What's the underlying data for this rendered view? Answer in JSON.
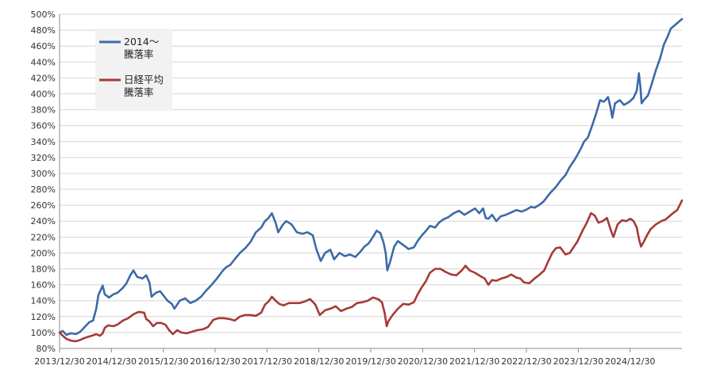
{
  "chart_data": {
    "type": "line",
    "title": "",
    "xlabel": "",
    "ylabel": "",
    "y_unit": "%",
    "ylim": [
      80,
      500
    ],
    "y_tick_step": 20,
    "grid": "horizontal",
    "legend_position": "top-left",
    "x_tick_labels": [
      "2013/12/30",
      "2014/12/30",
      "2015/12/30",
      "2016/12/30",
      "2017/12/30",
      "2018/12/30",
      "2019/12/30",
      "2020/12/30",
      "2021/12/30",
      "2022/12/30",
      "2023/12/30",
      "2024/12/30"
    ],
    "x_range": [
      2013.99,
      2025.69
    ],
    "series": [
      {
        "legend_lines": [
          "2014～",
          "騰落率"
        ],
        "color": "#3c6aa8",
        "points": [
          [
            2013.99,
            100
          ],
          [
            2014.05,
            102
          ],
          [
            2014.12,
            97
          ],
          [
            2014.2,
            99
          ],
          [
            2014.3,
            98
          ],
          [
            2014.38,
            101
          ],
          [
            2014.45,
            106
          ],
          [
            2014.55,
            113
          ],
          [
            2014.62,
            115
          ],
          [
            2014.68,
            130
          ],
          [
            2014.72,
            147
          ],
          [
            2014.8,
            159
          ],
          [
            2014.84,
            148
          ],
          [
            2014.92,
            144
          ],
          [
            2015.0,
            148
          ],
          [
            2015.08,
            150
          ],
          [
            2015.18,
            156
          ],
          [
            2015.25,
            162
          ],
          [
            2015.32,
            172
          ],
          [
            2015.38,
            178
          ],
          [
            2015.45,
            170
          ],
          [
            2015.55,
            168
          ],
          [
            2015.62,
            172
          ],
          [
            2015.68,
            163
          ],
          [
            2015.72,
            145
          ],
          [
            2015.8,
            150
          ],
          [
            2015.88,
            152
          ],
          [
            2015.95,
            146
          ],
          [
            2016.02,
            140
          ],
          [
            2016.1,
            136
          ],
          [
            2016.15,
            130
          ],
          [
            2016.25,
            140
          ],
          [
            2016.35,
            143
          ],
          [
            2016.45,
            137
          ],
          [
            2016.55,
            140
          ],
          [
            2016.65,
            145
          ],
          [
            2016.75,
            153
          ],
          [
            2016.85,
            160
          ],
          [
            2016.95,
            168
          ],
          [
            2017.05,
            177
          ],
          [
            2017.12,
            182
          ],
          [
            2017.2,
            185
          ],
          [
            2017.28,
            192
          ],
          [
            2017.38,
            200
          ],
          [
            2017.48,
            206
          ],
          [
            2017.58,
            214
          ],
          [
            2017.68,
            226
          ],
          [
            2017.78,
            232
          ],
          [
            2017.85,
            240
          ],
          [
            2017.92,
            244
          ],
          [
            2017.98,
            250
          ],
          [
            2018.05,
            238
          ],
          [
            2018.1,
            226
          ],
          [
            2018.18,
            235
          ],
          [
            2018.25,
            240
          ],
          [
            2018.35,
            236
          ],
          [
            2018.45,
            226
          ],
          [
            2018.55,
            224
          ],
          [
            2018.65,
            226
          ],
          [
            2018.75,
            222
          ],
          [
            2018.82,
            204
          ],
          [
            2018.9,
            190
          ],
          [
            2018.98,
            200
          ],
          [
            2019.08,
            204
          ],
          [
            2019.15,
            192
          ],
          [
            2019.25,
            200
          ],
          [
            2019.35,
            196
          ],
          [
            2019.45,
            198
          ],
          [
            2019.55,
            195
          ],
          [
            2019.65,
            202
          ],
          [
            2019.72,
            208
          ],
          [
            2019.8,
            212
          ],
          [
            2019.88,
            220
          ],
          [
            2019.95,
            228
          ],
          [
            2020.02,
            225
          ],
          [
            2020.08,
            213
          ],
          [
            2020.12,
            200
          ],
          [
            2020.15,
            178
          ],
          [
            2020.2,
            188
          ],
          [
            2020.28,
            208
          ],
          [
            2020.35,
            215
          ],
          [
            2020.45,
            210
          ],
          [
            2020.55,
            205
          ],
          [
            2020.65,
            207
          ],
          [
            2020.72,
            215
          ],
          [
            2020.8,
            222
          ],
          [
            2020.88,
            228
          ],
          [
            2020.95,
            234
          ],
          [
            2021.05,
            232
          ],
          [
            2021.12,
            238
          ],
          [
            2021.2,
            242
          ],
          [
            2021.3,
            245
          ],
          [
            2021.4,
            250
          ],
          [
            2021.5,
            253
          ],
          [
            2021.6,
            248
          ],
          [
            2021.7,
            252
          ],
          [
            2021.8,
            256
          ],
          [
            2021.88,
            250
          ],
          [
            2021.95,
            256
          ],
          [
            2022.0,
            244
          ],
          [
            2022.05,
            243
          ],
          [
            2022.12,
            248
          ],
          [
            2022.2,
            240
          ],
          [
            2022.28,
            246
          ],
          [
            2022.38,
            248
          ],
          [
            2022.48,
            251
          ],
          [
            2022.58,
            254
          ],
          [
            2022.68,
            252
          ],
          [
            2022.78,
            255
          ],
          [
            2022.85,
            258
          ],
          [
            2022.92,
            257
          ],
          [
            2023.0,
            260
          ],
          [
            2023.08,
            264
          ],
          [
            2023.15,
            270
          ],
          [
            2023.22,
            276
          ],
          [
            2023.32,
            283
          ],
          [
            2023.42,
            292
          ],
          [
            2023.5,
            298
          ],
          [
            2023.58,
            308
          ],
          [
            2023.68,
            318
          ],
          [
            2023.78,
            330
          ],
          [
            2023.85,
            340
          ],
          [
            2023.92,
            345
          ],
          [
            2024.0,
            360
          ],
          [
            2024.08,
            376
          ],
          [
            2024.15,
            392
          ],
          [
            2024.22,
            390
          ],
          [
            2024.25,
            392
          ],
          [
            2024.3,
            396
          ],
          [
            2024.35,
            382
          ],
          [
            2024.38,
            370
          ],
          [
            2024.43,
            388
          ],
          [
            2024.52,
            392
          ],
          [
            2024.6,
            386
          ],
          [
            2024.7,
            390
          ],
          [
            2024.78,
            395
          ],
          [
            2024.84,
            404
          ],
          [
            2024.88,
            426
          ],
          [
            2024.91,
            408
          ],
          [
            2024.93,
            388
          ],
          [
            2024.97,
            392
          ],
          [
            2025.05,
            398
          ],
          [
            2025.12,
            412
          ],
          [
            2025.2,
            430
          ],
          [
            2025.28,
            445
          ],
          [
            2025.35,
            462
          ],
          [
            2025.42,
            472
          ],
          [
            2025.48,
            482
          ],
          [
            2025.55,
            486
          ],
          [
            2025.62,
            490
          ],
          [
            2025.69,
            494
          ]
        ]
      },
      {
        "legend_lines": [
          "日経平均",
          "騰落率"
        ],
        "color": "#a53a36",
        "points": [
          [
            2013.99,
            100
          ],
          [
            2014.05,
            96
          ],
          [
            2014.12,
            92
          ],
          [
            2014.2,
            90
          ],
          [
            2014.28,
            89
          ],
          [
            2014.35,
            90
          ],
          [
            2014.42,
            92
          ],
          [
            2014.5,
            94
          ],
          [
            2014.6,
            96
          ],
          [
            2014.68,
            98
          ],
          [
            2014.75,
            96
          ],
          [
            2014.8,
            99
          ],
          [
            2014.84,
            106
          ],
          [
            2014.9,
            109
          ],
          [
            2015.0,
            108
          ],
          [
            2015.08,
            110
          ],
          [
            2015.18,
            115
          ],
          [
            2015.28,
            118
          ],
          [
            2015.38,
            123
          ],
          [
            2015.48,
            126
          ],
          [
            2015.58,
            125
          ],
          [
            2015.62,
            117
          ],
          [
            2015.68,
            114
          ],
          [
            2015.75,
            108
          ],
          [
            2015.82,
            112
          ],
          [
            2015.9,
            112
          ],
          [
            2015.98,
            110
          ],
          [
            2016.05,
            103
          ],
          [
            2016.12,
            98
          ],
          [
            2016.2,
            103
          ],
          [
            2016.28,
            100
          ],
          [
            2016.38,
            99
          ],
          [
            2016.48,
            101
          ],
          [
            2016.58,
            103
          ],
          [
            2016.68,
            104
          ],
          [
            2016.78,
            107
          ],
          [
            2016.88,
            116
          ],
          [
            2016.98,
            118
          ],
          [
            2017.08,
            118
          ],
          [
            2017.18,
            117
          ],
          [
            2017.28,
            115
          ],
          [
            2017.38,
            120
          ],
          [
            2017.48,
            122
          ],
          [
            2017.58,
            122
          ],
          [
            2017.68,
            121
          ],
          [
            2017.78,
            125
          ],
          [
            2017.85,
            135
          ],
          [
            2017.92,
            139
          ],
          [
            2017.98,
            145
          ],
          [
            2018.05,
            140
          ],
          [
            2018.12,
            136
          ],
          [
            2018.2,
            134
          ],
          [
            2018.3,
            137
          ],
          [
            2018.4,
            137
          ],
          [
            2018.5,
            137
          ],
          [
            2018.6,
            139
          ],
          [
            2018.7,
            142
          ],
          [
            2018.8,
            135
          ],
          [
            2018.88,
            122
          ],
          [
            2018.98,
            128
          ],
          [
            2019.08,
            130
          ],
          [
            2019.18,
            133
          ],
          [
            2019.28,
            127
          ],
          [
            2019.38,
            130
          ],
          [
            2019.48,
            132
          ],
          [
            2019.58,
            137
          ],
          [
            2019.68,
            138
          ],
          [
            2019.78,
            140
          ],
          [
            2019.88,
            144
          ],
          [
            2019.98,
            142
          ],
          [
            2020.05,
            138
          ],
          [
            2020.1,
            125
          ],
          [
            2020.14,
            108
          ],
          [
            2020.17,
            114
          ],
          [
            2020.25,
            122
          ],
          [
            2020.35,
            130
          ],
          [
            2020.45,
            136
          ],
          [
            2020.55,
            135
          ],
          [
            2020.65,
            138
          ],
          [
            2020.72,
            148
          ],
          [
            2020.8,
            157
          ],
          [
            2020.88,
            165
          ],
          [
            2020.95,
            175
          ],
          [
            2021.05,
            180
          ],
          [
            2021.15,
            180
          ],
          [
            2021.25,
            176
          ],
          [
            2021.35,
            173
          ],
          [
            2021.45,
            172
          ],
          [
            2021.55,
            178
          ],
          [
            2021.62,
            184
          ],
          [
            2021.7,
            178
          ],
          [
            2021.8,
            175
          ],
          [
            2021.9,
            171
          ],
          [
            2021.98,
            168
          ],
          [
            2022.05,
            160
          ],
          [
            2022.12,
            166
          ],
          [
            2022.2,
            165
          ],
          [
            2022.3,
            168
          ],
          [
            2022.4,
            170
          ],
          [
            2022.48,
            173
          ],
          [
            2022.58,
            169
          ],
          [
            2022.65,
            168
          ],
          [
            2022.72,
            163
          ],
          [
            2022.82,
            162
          ],
          [
            2022.92,
            168
          ],
          [
            2023.0,
            172
          ],
          [
            2023.1,
            178
          ],
          [
            2023.18,
            190
          ],
          [
            2023.25,
            200
          ],
          [
            2023.32,
            206
          ],
          [
            2023.4,
            207
          ],
          [
            2023.5,
            198
          ],
          [
            2023.58,
            200
          ],
          [
            2023.65,
            207
          ],
          [
            2023.72,
            214
          ],
          [
            2023.82,
            228
          ],
          [
            2023.9,
            238
          ],
          [
            2023.98,
            250
          ],
          [
            2024.05,
            247
          ],
          [
            2024.12,
            238
          ],
          [
            2024.2,
            240
          ],
          [
            2024.28,
            244
          ],
          [
            2024.35,
            229
          ],
          [
            2024.4,
            220
          ],
          [
            2024.48,
            236
          ],
          [
            2024.56,
            241
          ],
          [
            2024.64,
            240
          ],
          [
            2024.72,
            243
          ],
          [
            2024.78,
            240
          ],
          [
            2024.84,
            232
          ],
          [
            2024.88,
            218
          ],
          [
            2024.92,
            208
          ],
          [
            2024.97,
            214
          ],
          [
            2025.03,
            222
          ],
          [
            2025.1,
            230
          ],
          [
            2025.2,
            236
          ],
          [
            2025.3,
            240
          ],
          [
            2025.38,
            242
          ],
          [
            2025.45,
            246
          ],
          [
            2025.52,
            250
          ],
          [
            2025.6,
            254
          ],
          [
            2025.69,
            266
          ]
        ]
      }
    ]
  }
}
